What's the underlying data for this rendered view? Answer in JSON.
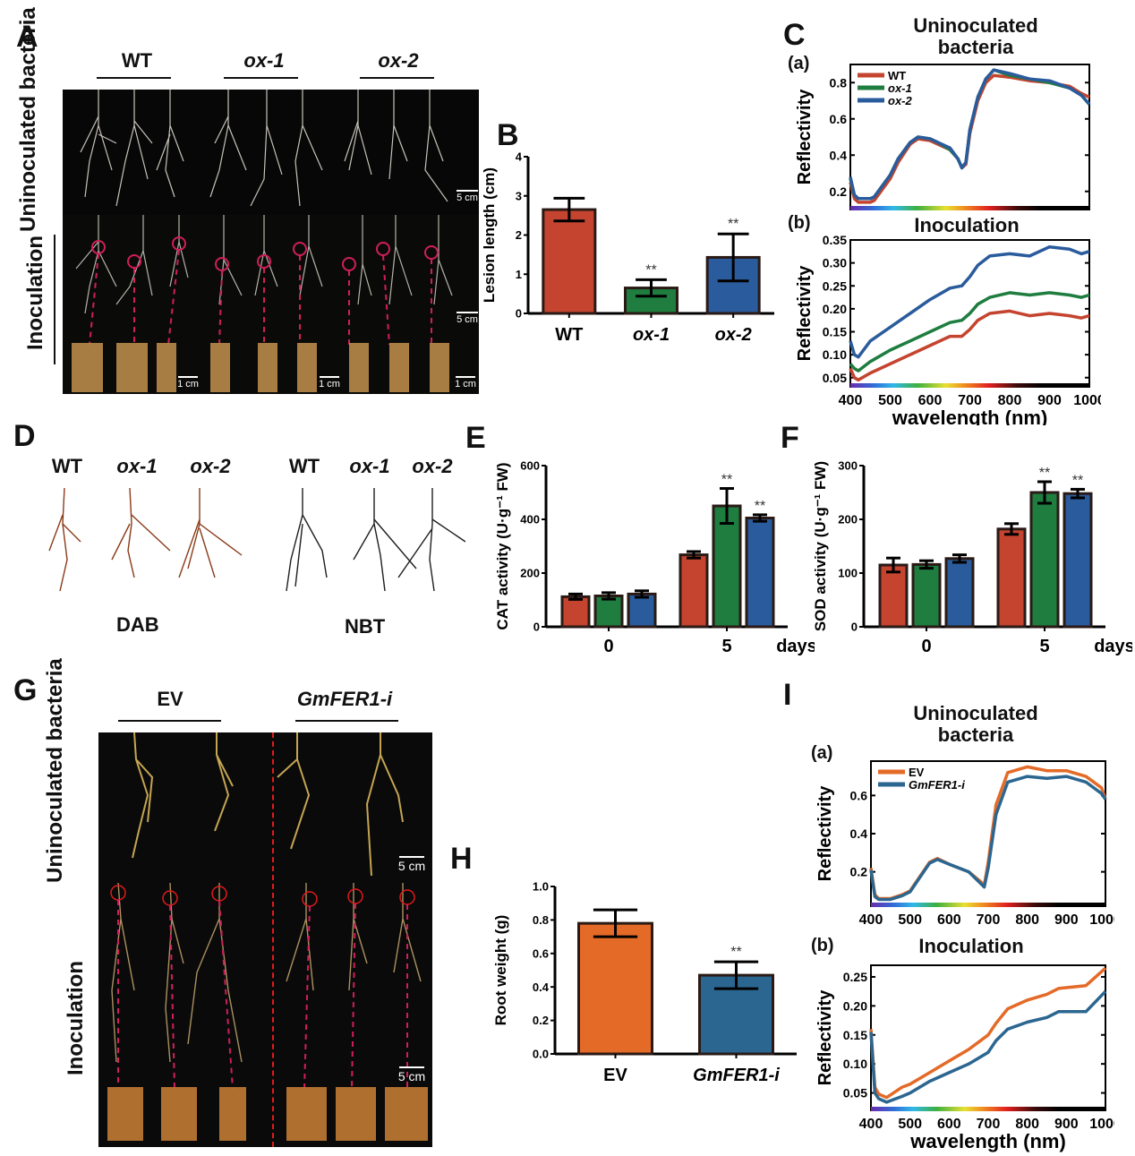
{
  "panels": {
    "A": {
      "label": "A",
      "groups": [
        "WT",
        "ox-1",
        "ox-2"
      ],
      "row_labels": [
        "Uninoculated bacteria",
        "Inoculation"
      ],
      "scale_bars": [
        "5 cm",
        "5 cm",
        "1 cm",
        "1 cm",
        "1 cm"
      ]
    },
    "D": {
      "label": "D",
      "groups_dab": [
        "WT",
        "ox-1",
        "ox-2"
      ],
      "groups_nbt": [
        "WT",
        "ox-1",
        "ox-2"
      ],
      "stains": [
        "DAB",
        "NBT"
      ]
    },
    "G": {
      "label": "G",
      "groups": [
        "EV",
        "GmFER1-i"
      ],
      "row_labels": [
        "Uninoculated bacteria",
        "Inoculation"
      ],
      "scale_bars": [
        "5 cm",
        "5 cm"
      ]
    }
  },
  "colors": {
    "wt": "#c4442f",
    "ox1": "#1e7d3f",
    "ox2": "#2a5b9c",
    "ev": "#e46a27",
    "gmfer": "#2b6690",
    "outline": "#2a1a16"
  },
  "chart_data": [
    {
      "id": "B",
      "panel_label": "B",
      "type": "bar",
      "title": "",
      "xlabel": "",
      "ylabel": "Lesion length (cm)",
      "ylim": [
        0,
        4
      ],
      "yticks": [
        "0",
        "1",
        "2",
        "3",
        "4"
      ],
      "categories": [
        "WT",
        "ox-1",
        "ox-2"
      ],
      "values": [
        2.65,
        0.65,
        1.43
      ],
      "errors": [
        0.29,
        0.21,
        0.6
      ],
      "significance": [
        "",
        "**",
        "**"
      ]
    },
    {
      "id": "Ca",
      "panel_label": "C",
      "sub_label": "(a)",
      "type": "line",
      "title": "Uninoculated bacteria",
      "xlabel": "",
      "ylabel": "Reflectivity",
      "xlim": [
        400,
        1000
      ],
      "ylim": [
        0.1,
        0.9
      ],
      "yticks": [
        "0.2",
        "0.4",
        "0.6",
        "0.8"
      ],
      "x": [
        400,
        410,
        420,
        450,
        460,
        480,
        500,
        520,
        550,
        570,
        600,
        620,
        650,
        670,
        680,
        690,
        700,
        720,
        740,
        760,
        800,
        850,
        900,
        950,
        980,
        1000
      ],
      "series": [
        {
          "name": "WT",
          "values": [
            0.25,
            0.16,
            0.14,
            0.14,
            0.15,
            0.21,
            0.27,
            0.36,
            0.46,
            0.49,
            0.48,
            0.46,
            0.43,
            0.38,
            0.33,
            0.35,
            0.52,
            0.7,
            0.8,
            0.84,
            0.83,
            0.81,
            0.8,
            0.78,
            0.74,
            0.72
          ]
        },
        {
          "name": "ox-1",
          "values": [
            0.27,
            0.18,
            0.16,
            0.16,
            0.17,
            0.23,
            0.29,
            0.38,
            0.47,
            0.5,
            0.49,
            0.47,
            0.43,
            0.38,
            0.33,
            0.36,
            0.54,
            0.72,
            0.82,
            0.87,
            0.84,
            0.82,
            0.8,
            0.77,
            0.73,
            0.68
          ]
        },
        {
          "name": "ox-2",
          "values": [
            0.28,
            0.18,
            0.16,
            0.16,
            0.17,
            0.23,
            0.29,
            0.38,
            0.47,
            0.5,
            0.49,
            0.47,
            0.44,
            0.38,
            0.33,
            0.36,
            0.54,
            0.72,
            0.82,
            0.87,
            0.85,
            0.82,
            0.81,
            0.77,
            0.73,
            0.68
          ]
        }
      ]
    },
    {
      "id": "Cb",
      "sub_label": "(b)",
      "type": "line",
      "title": "Inoculation",
      "xlabel": "wavelength (nm)",
      "ylabel": "Reflectivity",
      "xlim": [
        400,
        1000
      ],
      "ylim": [
        0.03,
        0.35
      ],
      "yticks": [
        "0.05",
        "0.10",
        "0.15",
        "0.20",
        "0.25",
        "0.30",
        "0.35"
      ],
      "xticks": [
        "400",
        "500",
        "600",
        "700",
        "800",
        "900",
        "1000"
      ],
      "x": [
        400,
        410,
        420,
        450,
        500,
        550,
        600,
        650,
        680,
        700,
        720,
        750,
        800,
        850,
        900,
        950,
        980,
        1000
      ],
      "series": [
        {
          "name": "WT",
          "values": [
            0.07,
            0.05,
            0.045,
            0.06,
            0.08,
            0.1,
            0.12,
            0.14,
            0.14,
            0.155,
            0.175,
            0.19,
            0.195,
            0.185,
            0.19,
            0.185,
            0.18,
            0.185
          ]
        },
        {
          "name": "ox-1",
          "values": [
            0.08,
            0.07,
            0.065,
            0.085,
            0.11,
            0.13,
            0.15,
            0.17,
            0.175,
            0.19,
            0.21,
            0.225,
            0.235,
            0.23,
            0.235,
            0.23,
            0.225,
            0.23
          ]
        },
        {
          "name": "ox-2",
          "values": [
            0.13,
            0.1,
            0.095,
            0.13,
            0.16,
            0.19,
            0.22,
            0.245,
            0.25,
            0.27,
            0.295,
            0.315,
            0.32,
            0.315,
            0.335,
            0.33,
            0.32,
            0.325
          ]
        }
      ]
    },
    {
      "id": "E",
      "panel_label": "E",
      "type": "bar",
      "ylabel": "CAT activity (U·g⁻¹ FW)",
      "xlabel": "days",
      "ylim": [
        0,
        600
      ],
      "yticks": [
        "0",
        "200",
        "400",
        "600"
      ],
      "categories": [
        "0",
        "5"
      ],
      "series": [
        {
          "name": "WT",
          "values": [
            112,
            268
          ],
          "errors": [
            10,
            12
          ]
        },
        {
          "name": "ox-1",
          "values": [
            115,
            450
          ],
          "errors": [
            12,
            65
          ]
        },
        {
          "name": "ox-2",
          "values": [
            122,
            405
          ],
          "errors": [
            12,
            12
          ]
        }
      ],
      "significance": [
        [
          "",
          "",
          ""
        ],
        [
          "",
          "**",
          "**"
        ]
      ]
    },
    {
      "id": "F",
      "panel_label": "F",
      "type": "bar",
      "ylabel": "SOD activity (U·g⁻¹ FW)",
      "xlabel": "days",
      "ylim": [
        0,
        300
      ],
      "yticks": [
        "0",
        "100",
        "200",
        "300"
      ],
      "categories": [
        "0",
        "5"
      ],
      "series": [
        {
          "name": "WT",
          "values": [
            115,
            182
          ],
          "errors": [
            13,
            10
          ]
        },
        {
          "name": "ox-1",
          "values": [
            116,
            250
          ],
          "errors": [
            7,
            20
          ]
        },
        {
          "name": "ox-2",
          "values": [
            127,
            248
          ],
          "errors": [
            7,
            8
          ]
        }
      ],
      "significance": [
        [
          "",
          "",
          ""
        ],
        [
          "",
          "**",
          "**"
        ]
      ]
    },
    {
      "id": "H",
      "panel_label": "H",
      "type": "bar",
      "ylabel": "Root weight (g)",
      "xlabel": "",
      "ylim": [
        0,
        1.0
      ],
      "yticks": [
        "0.0",
        "0.2",
        "0.4",
        "0.6",
        "0.8",
        "1.0"
      ],
      "categories": [
        "EV",
        "GmFER1-i"
      ],
      "values": [
        0.78,
        0.47
      ],
      "errors": [
        0.08,
        0.08
      ],
      "significance": [
        "",
        "**"
      ]
    },
    {
      "id": "Ia",
      "panel_label": "I",
      "sub_label": "(a)",
      "type": "line",
      "title": "Uninoculated bacteria",
      "ylabel": "Reflectivity",
      "xlim": [
        400,
        1000
      ],
      "ylim": [
        0.02,
        0.78
      ],
      "yticks": [
        "0.2",
        "0.4",
        "0.6"
      ],
      "xticks": [
        "400",
        "500",
        "600",
        "700",
        "800",
        "900",
        "1000"
      ],
      "x": [
        400,
        410,
        420,
        450,
        480,
        500,
        520,
        550,
        570,
        600,
        650,
        680,
        690,
        700,
        720,
        750,
        800,
        850,
        900,
        950,
        990,
        1000
      ],
      "series": [
        {
          "name": "EV",
          "values": [
            0.22,
            0.08,
            0.06,
            0.06,
            0.08,
            0.1,
            0.16,
            0.25,
            0.27,
            0.24,
            0.2,
            0.15,
            0.13,
            0.25,
            0.55,
            0.72,
            0.75,
            0.73,
            0.73,
            0.7,
            0.64,
            0.58
          ]
        },
        {
          "name": "GmFER1-i",
          "values": [
            0.21,
            0.07,
            0.055,
            0.055,
            0.075,
            0.095,
            0.155,
            0.245,
            0.265,
            0.24,
            0.2,
            0.14,
            0.12,
            0.22,
            0.5,
            0.67,
            0.7,
            0.69,
            0.7,
            0.67,
            0.61,
            0.58
          ]
        }
      ]
    },
    {
      "id": "Ib",
      "sub_label": "(b)",
      "type": "line",
      "title": "Inoculation",
      "xlabel": "wavelength (nm)",
      "ylabel": "Reflectivity",
      "xlim": [
        400,
        1000
      ],
      "ylim": [
        0.02,
        0.27
      ],
      "yticks": [
        "0.05",
        "0.10",
        "0.15",
        "0.20",
        "0.25"
      ],
      "xticks": [
        "400",
        "500",
        "600",
        "700",
        "800",
        "900",
        "1000"
      ],
      "x": [
        400,
        410,
        420,
        440,
        480,
        500,
        550,
        600,
        650,
        700,
        720,
        750,
        800,
        850,
        880,
        950,
        1000
      ],
      "series": [
        {
          "name": "EV",
          "values": [
            0.16,
            0.06,
            0.048,
            0.042,
            0.06,
            0.065,
            0.085,
            0.105,
            0.125,
            0.15,
            0.17,
            0.195,
            0.21,
            0.22,
            0.23,
            0.235,
            0.265
          ]
        },
        {
          "name": "GmFER1-i",
          "values": [
            0.155,
            0.05,
            0.04,
            0.034,
            0.044,
            0.05,
            0.07,
            0.085,
            0.1,
            0.12,
            0.14,
            0.16,
            0.172,
            0.18,
            0.19,
            0.19,
            0.225
          ]
        }
      ]
    }
  ]
}
